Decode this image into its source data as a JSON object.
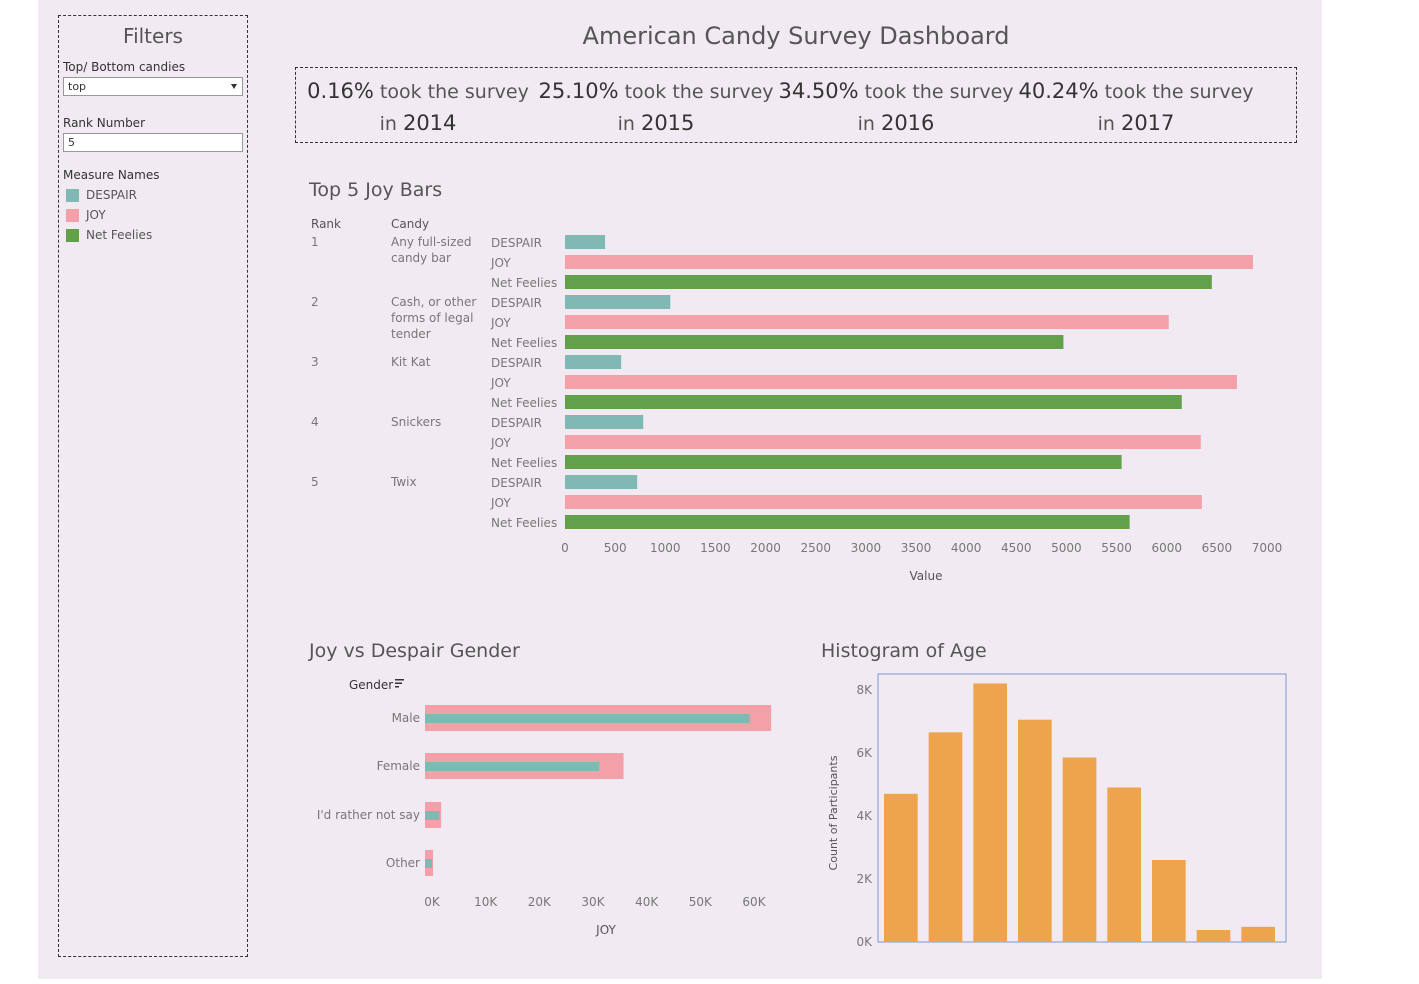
{
  "filters": {
    "title": "Filters",
    "top_bottom_label": "Top/ Bottom candies",
    "top_bottom_value": "top",
    "rank_label": "Rank Number",
    "rank_value": "5",
    "legend_title": "Measure Names",
    "legend": [
      {
        "label": "DESPAIR",
        "color": "#80b8b4"
      },
      {
        "label": "JOY",
        "color": "#f4a0a8"
      },
      {
        "label": "Net Feelies",
        "color": "#62a049"
      }
    ]
  },
  "dashboard_title": "American Candy Survey Dashboard",
  "kpis": [
    {
      "pct": "0.16%",
      "text": "took the survey",
      "in": "in",
      "year": "2014"
    },
    {
      "pct": "25.10%",
      "text": "took the survey",
      "in": "in",
      "year": "2015"
    },
    {
      "pct": "34.50%",
      "text": "took the survey",
      "in": "in",
      "year": "2016"
    },
    {
      "pct": "40.24%",
      "text": "took the survey",
      "in": "in",
      "year": "2017"
    }
  ],
  "colors": {
    "despair": "#80b8b4",
    "joy": "#f4a0a8",
    "net": "#62a049",
    "hist": "#eda44c",
    "hist_border": "#7a9ccc"
  },
  "chart_data": [
    {
      "id": "top5",
      "type": "bar",
      "orientation": "horizontal",
      "title": "Top 5  Joy Bars",
      "header_rank": "Rank",
      "header_candy": "Candy",
      "xlabel": "Value",
      "xlim": [
        0,
        7000
      ],
      "xticks": [
        "0",
        "500",
        "1000",
        "1500",
        "2000",
        "2500",
        "3000",
        "3500",
        "4000",
        "4500",
        "5000",
        "5500",
        "6000",
        "6500",
        "7000"
      ],
      "measures": [
        "DESPAIR",
        "JOY",
        "Net Feelies"
      ],
      "rows": [
        {
          "rank": "1",
          "candy": [
            "Any full-sized",
            "candy bar"
          ],
          "values": [
            400,
            6860,
            6450
          ]
        },
        {
          "rank": "2",
          "candy": [
            "Cash, or other",
            "forms of legal",
            "tender"
          ],
          "values": [
            1050,
            6020,
            4970
          ]
        },
        {
          "rank": "3",
          "candy": [
            "Kit Kat"
          ],
          "values": [
            560,
            6700,
            6150
          ]
        },
        {
          "rank": "4",
          "candy": [
            "Snickers"
          ],
          "values": [
            780,
            6340,
            5550
          ]
        },
        {
          "rank": "5",
          "candy": [
            "Twix"
          ],
          "values": [
            720,
            6350,
            5630
          ]
        }
      ]
    },
    {
      "id": "gender",
      "type": "bar",
      "orientation": "horizontal",
      "title": "Joy vs Despair Gender",
      "header": "Gender",
      "xlabel": "JOY",
      "xlim": [
        0,
        64000
      ],
      "xticks": [
        "0K",
        "10K",
        "20K",
        "30K",
        "40K",
        "50K",
        "60K"
      ],
      "categories": [
        "Male",
        "Female",
        "I'd rather not say",
        "Other"
      ],
      "series": [
        {
          "name": "JOY",
          "values": [
            64500,
            37000,
            3000,
            1500
          ]
        },
        {
          "name": "DESPAIR",
          "values": [
            60500,
            32500,
            2700,
            1300
          ]
        }
      ]
    },
    {
      "id": "age",
      "type": "bar",
      "title": "Histogram of Age",
      "ylabel": "Count of Participants",
      "ylim": [
        0,
        8500
      ],
      "yticks": [
        "0K",
        "2K",
        "4K",
        "6K",
        "8K"
      ],
      "values": [
        4700,
        6650,
        8200,
        7050,
        5850,
        4900,
        2600,
        380,
        480
      ]
    }
  ]
}
